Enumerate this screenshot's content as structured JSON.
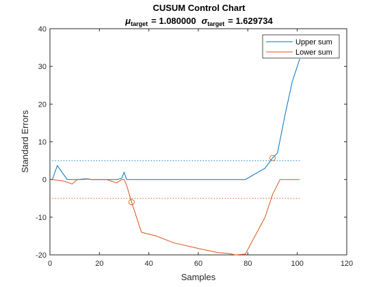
{
  "chart_data": {
    "type": "line",
    "title": "CUSUM  Control  Chart",
    "subtitle": {
      "mu_symbol": "μ",
      "mu_sub": "target",
      "mu_value": "=  1.080000",
      "sigma_symbol": "σ",
      "sigma_sub": "target",
      "sigma_value": "=  1.629734"
    },
    "xlabel": "Samples",
    "ylabel": "Standard Errors",
    "xlim": [
      0,
      120
    ],
    "ylim": [
      -20,
      40
    ],
    "xticks": [
      0,
      20,
      40,
      60,
      80,
      100,
      120
    ],
    "yticks": [
      -20,
      -10,
      0,
      10,
      20,
      30,
      40
    ],
    "xtick_labels": [
      "0",
      "20",
      "40",
      "60",
      "80",
      "100",
      "120"
    ],
    "ytick_labels": [
      "-20",
      "-10",
      "0",
      "10",
      "20",
      "30",
      "40"
    ],
    "legend_position": "top-right",
    "grid": false,
    "series": [
      {
        "name": "Upper sum",
        "color": "#0072BD",
        "x": [
          1,
          3,
          5,
          7,
          9,
          11,
          13,
          15,
          17,
          19,
          21,
          23,
          25,
          27,
          29,
          30,
          31,
          33,
          40,
          50,
          60,
          70,
          79,
          87,
          90,
          92,
          95,
          98,
          101
        ],
        "y": [
          0,
          3.7,
          1.8,
          0,
          0,
          0,
          0.1,
          0.2,
          0,
          0,
          0,
          0,
          0,
          0,
          0.3,
          1.9,
          0,
          0,
          0,
          0,
          0,
          0,
          0,
          3,
          5.7,
          7,
          17,
          26,
          32
        ]
      },
      {
        "name": "Lower sum",
        "color": "#D95319",
        "x": [
          1,
          3,
          6,
          9,
          11,
          13,
          15,
          17,
          20,
          23,
          25,
          27,
          29,
          30,
          31,
          33,
          37,
          43,
          50,
          60,
          68,
          72,
          75,
          79,
          87,
          90,
          93,
          95,
          98,
          101
        ],
        "y": [
          0,
          -0.2,
          -0.5,
          -1.2,
          0,
          0,
          0.1,
          0,
          0,
          0,
          -0.5,
          -0.9,
          0,
          0,
          -1.5,
          -6,
          -14,
          -15,
          -16.8,
          -18.3,
          -19.4,
          -19.6,
          -20,
          -19.8,
          -10,
          -4,
          0,
          0,
          0,
          0
        ]
      }
    ],
    "control_limits": [
      {
        "value": 5,
        "color": "#0072BD",
        "style": "dotted"
      },
      {
        "value": -5,
        "color": "#D95319",
        "style": "dotted"
      }
    ],
    "markers": [
      {
        "x": 90,
        "y": 5.7,
        "color": "#D95319",
        "shape": "circle"
      },
      {
        "x": 33,
        "y": -6,
        "color": "#D95319",
        "shape": "circle"
      }
    ]
  }
}
